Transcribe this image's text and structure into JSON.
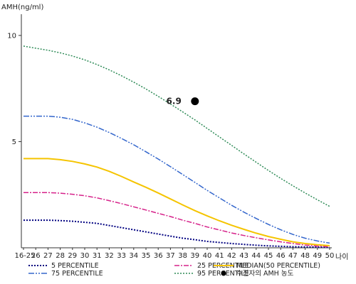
{
  "chart_data": {
    "type": "line",
    "ylabel": "AMH(ng/ml)",
    "xlabel": "나이",
    "x_ticks": [
      "16-25",
      "26",
      "27",
      "28",
      "29",
      "30",
      "31",
      "32",
      "33",
      "34",
      "35",
      "36",
      "37",
      "38",
      "39",
      "40",
      "41",
      "42",
      "43",
      "44",
      "45",
      "46",
      "47",
      "48",
      "49",
      "50"
    ],
    "y_ticks": [
      5,
      10
    ],
    "ylim": [
      0,
      11
    ],
    "grid": false,
    "legend_position": "bottom",
    "series": [
      {
        "name": "5 PERCENTILE",
        "color": "#000080",
        "dash": "2,2",
        "width": 2,
        "values": [
          1.3,
          1.3,
          1.3,
          1.28,
          1.25,
          1.2,
          1.15,
          1.05,
          0.95,
          0.85,
          0.75,
          0.65,
          0.55,
          0.45,
          0.38,
          0.3,
          0.25,
          0.2,
          0.16,
          0.12,
          0.09,
          0.07,
          0.05,
          0.04,
          0.03,
          0.02
        ]
      },
      {
        "name": "25 PERCENTILE",
        "color": "#d6228a",
        "dash": "7,2,2,2",
        "width": 1.5,
        "values": [
          2.6,
          2.6,
          2.6,
          2.57,
          2.52,
          2.45,
          2.35,
          2.22,
          2.08,
          1.93,
          1.78,
          1.62,
          1.47,
          1.3,
          1.15,
          0.98,
          0.84,
          0.7,
          0.58,
          0.47,
          0.37,
          0.28,
          0.2,
          0.13,
          0.08,
          0.05
        ]
      },
      {
        "name": "MEDIAN(50 PERCENTILE)",
        "color": "#f5c400",
        "dash": "",
        "width": 2,
        "values": [
          4.2,
          4.2,
          4.2,
          4.15,
          4.07,
          3.95,
          3.8,
          3.6,
          3.36,
          3.1,
          2.85,
          2.58,
          2.3,
          2.02,
          1.75,
          1.5,
          1.27,
          1.06,
          0.87,
          0.69,
          0.53,
          0.4,
          0.28,
          0.2,
          0.14,
          0.1
        ]
      },
      {
        "name": "75 PERCENTILE",
        "color": "#3366cc",
        "dash": "8,2,2,2,2,2",
        "width": 1.5,
        "values": [
          6.2,
          6.2,
          6.2,
          6.15,
          6.05,
          5.88,
          5.68,
          5.43,
          5.15,
          4.85,
          4.52,
          4.18,
          3.82,
          3.45,
          3.08,
          2.7,
          2.35,
          2.0,
          1.68,
          1.38,
          1.1,
          0.85,
          0.63,
          0.45,
          0.32,
          0.22
        ]
      },
      {
        "name": "95 PERCENTILE",
        "color": "#2e8b57",
        "dash": "2,2",
        "width": 1.5,
        "values": [
          9.5,
          9.4,
          9.3,
          9.18,
          9.03,
          8.85,
          8.63,
          8.38,
          8.1,
          7.8,
          7.48,
          7.13,
          6.77,
          6.4,
          6.02,
          5.62,
          5.22,
          4.82,
          4.42,
          4.03,
          3.64,
          3.27,
          2.92,
          2.58,
          2.26,
          1.95
        ]
      }
    ],
    "markers": [
      {
        "name": "수진자의 AMH 농도",
        "x": "39",
        "y": 6.9,
        "label": "6.9",
        "color": "#000000"
      }
    ]
  }
}
